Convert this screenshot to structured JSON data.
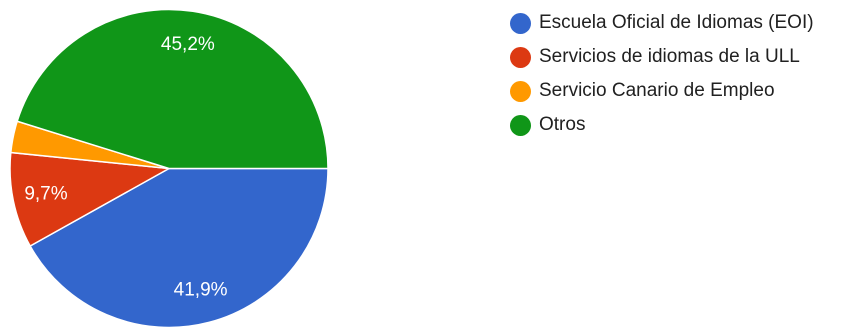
{
  "chart_data": {
    "type": "pie",
    "categories": [
      "Escuela Oficial de Idiomas (EOI)",
      "Servicios de idiomas de la ULL",
      "Servicio Canario de Empleo",
      "Otros"
    ],
    "values": [
      41.9,
      9.7,
      3.2,
      45.2
    ],
    "data_labels": [
      "41,9%",
      "9,7%",
      "",
      "45,2%"
    ],
    "colors": [
      "#3366cc",
      "#dc3912",
      "#ff9900",
      "#109618"
    ],
    "start_angle_deg": 0,
    "direction": "clockwise",
    "legend_position": "right",
    "title": ""
  }
}
